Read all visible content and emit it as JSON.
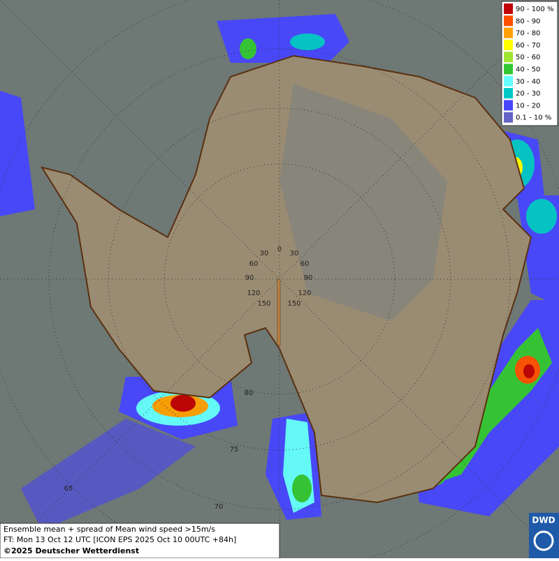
{
  "legend": {
    "items": [
      {
        "label": "90 - 100 %",
        "color": "#c00000"
      },
      {
        "label": "80 - 90",
        "color": "#ff5000"
      },
      {
        "label": "70 - 80",
        "color": "#ffa000"
      },
      {
        "label": "60 - 70",
        "color": "#ffff00"
      },
      {
        "label": "50 - 60",
        "color": "#a0e632"
      },
      {
        "label": "40 - 50",
        "color": "#32c832"
      },
      {
        "label": "30 - 40",
        "color": "#64ffff"
      },
      {
        "label": "20 - 30",
        "color": "#00c8c8"
      },
      {
        "label": "10 - 20",
        "color": "#4646ff"
      },
      {
        "label": "0.1 - 10 %",
        "color": "#6464c8"
      }
    ]
  },
  "info": {
    "line1": "Ensemble mean + spread of Mean wind speed >15m/s",
    "line2": "FT: Mon 13 Oct 12 UTC [ICON EPS 2025 Oct 10 00UTC +84h]",
    "line3": "©2025 Deutscher Wetterdienst"
  },
  "logo": "DWD",
  "graticule": {
    "longitude_labels": [
      "0",
      "30",
      "30",
      "60",
      "60",
      "90",
      "90",
      "120",
      "120",
      "150",
      "150"
    ],
    "latitude_labels": [
      "80",
      "75",
      "70",
      "65"
    ]
  }
}
